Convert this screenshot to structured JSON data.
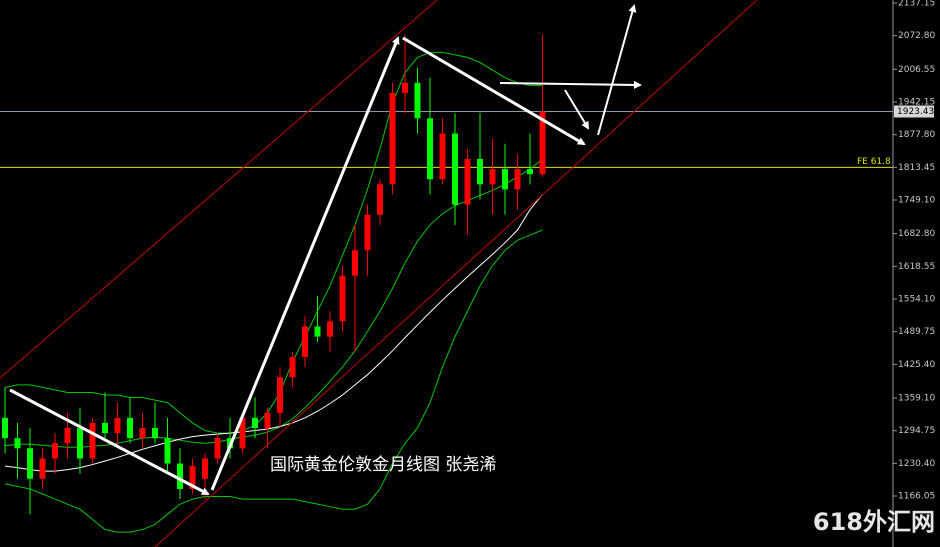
{
  "chart_data": {
    "type": "candlestick",
    "annotation": "国际黄金伦敦金月线图  张尧浠",
    "watermark": "618外汇网",
    "ylim": [
      1065.6,
      2143.06
    ],
    "yticks": [
      2137.15,
      {
        "value": 2072.8,
        "label": "2072.80"
      },
      2006.55,
      1942.15,
      {
        "value": 1877.8,
        "label": "1877.80"
      },
      1813.45,
      {
        "value": 1749.1,
        "label": "1749.10"
      },
      {
        "value": 1682.8,
        "label": "1682.80"
      },
      1618.55,
      {
        "value": 1554.1,
        "label": "1554.10"
      },
      1489.75,
      {
        "value": 1425.4,
        "label": "1425.40"
      },
      {
        "value": 1359.1,
        "label": "1359.10"
      },
      1294.75,
      {
        "value": 1230.4,
        "label": "1230.40"
      },
      1166.05
    ],
    "last_price": 1923.43,
    "fe_level": {
      "value": 1813.45,
      "label": "FE 61.8"
    },
    "up_color": "#ff0000",
    "down_color": "#00ff00",
    "open": [
      1320,
      1280,
      1260,
      1200,
      1240,
      1270,
      1300,
      1240,
      1310,
      1290,
      1320,
      1280,
      1300,
      1280,
      1230,
      1180,
      1200,
      1240,
      1280,
      1260,
      1320,
      1300,
      1330,
      1400,
      1440,
      1500,
      1480,
      1510,
      1600,
      1650,
      1720,
      1780,
      1960,
      1980,
      1910,
      1790,
      1880,
      1740,
      1830,
      1780,
      1810,
      1770,
      1810,
      1800
    ],
    "high": [
      1380,
      1310,
      1300,
      1260,
      1290,
      1330,
      1340,
      1320,
      1370,
      1350,
      1360,
      1330,
      1350,
      1320,
      1260,
      1240,
      1250,
      1290,
      1320,
      1330,
      1360,
      1340,
      1420,
      1450,
      1520,
      1560,
      1530,
      1620,
      1700,
      1740,
      1790,
      1980,
      2075,
      2010,
      1990,
      1910,
      1920,
      1850,
      1920,
      1870,
      1860,
      1840,
      1880,
      2075
    ],
    "low": [
      1250,
      1200,
      1130,
      1180,
      1210,
      1240,
      1210,
      1230,
      1280,
      1260,
      1270,
      1260,
      1270,
      1210,
      1160,
      1170,
      1160,
      1230,
      1240,
      1250,
      1280,
      1260,
      1300,
      1380,
      1420,
      1470,
      1450,
      1490,
      1450,
      1600,
      1700,
      1760,
      1920,
      1880,
      1760,
      1780,
      1700,
      1680,
      1750,
      1720,
      1720,
      1730,
      1780,
      1795
    ],
    "close": [
      1280,
      1260,
      1200,
      1240,
      1270,
      1300,
      1240,
      1310,
      1290,
      1320,
      1280,
      1300,
      1280,
      1230,
      1180,
      1225,
      1240,
      1280,
      1260,
      1320,
      1300,
      1330,
      1400,
      1440,
      1500,
      1480,
      1510,
      1600,
      1650,
      1720,
      1780,
      1960,
      1980,
      1910,
      1790,
      1880,
      1740,
      1830,
      1780,
      1810,
      1770,
      1810,
      1800,
      1923.43
    ],
    "lines": [
      {
        "color": "#00c800",
        "values": [
          1380,
          1385,
          1385,
          1380,
          1375,
          1370,
          1370,
          1370,
          1365,
          1365,
          1360,
          1360,
          1355,
          1350,
          1330,
          1310,
          1295,
          1290,
          1290,
          1295,
          1305,
          1330,
          1370,
          1430,
          1480,
          1530,
          1580,
          1640,
          1700,
          1770,
          1850,
          1940,
          2000,
          2030,
          2040,
          2040,
          2035,
          2030,
          2020,
          2005,
          1990,
          1980,
          1975,
          1975
        ]
      },
      {
        "color": "#00c800",
        "values": [
          1265,
          1268,
          1268,
          1266,
          1264,
          1262,
          1262,
          1264,
          1266,
          1270,
          1275,
          1280,
          1282,
          1280,
          1276,
          1272,
          1270,
          1272,
          1278,
          1282,
          1286,
          1292,
          1302,
          1318,
          1340,
          1365,
          1392,
          1420,
          1452,
          1490,
          1530,
          1575,
          1625,
          1668,
          1700,
          1722,
          1738,
          1748,
          1758,
          1768,
          1780,
          1795,
          1810,
          1830
        ]
      },
      {
        "color": "#00c800",
        "values": [
          1190,
          1185,
          1180,
          1170,
          1160,
          1150,
          1140,
          1120,
          1100,
          1095,
          1095,
          1100,
          1110,
          1130,
          1150,
          1160,
          1165,
          1165,
          1165,
          1160,
          1160,
          1160,
          1160,
          1160,
          1155,
          1150,
          1145,
          1140,
          1140,
          1150,
          1180,
          1230,
          1270,
          1300,
          1350,
          1420,
          1480,
          1530,
          1580,
          1620,
          1650,
          1670,
          1680,
          1690
        ]
      },
      {
        "color": "#ffffff",
        "values": [
          1225,
          1222,
          1218,
          1215,
          1215,
          1218,
          1222,
          1228,
          1235,
          1242,
          1250,
          1258,
          1265,
          1272,
          1278,
          1283,
          1286,
          1288,
          1290,
          1292,
          1295,
          1298,
          1303,
          1310,
          1320,
          1333,
          1348,
          1365,
          1385,
          1405,
          1428,
          1452,
          1478,
          1503,
          1528,
          1552,
          1575,
          1598,
          1620,
          1642,
          1665,
          1690,
          1730,
          1760
        ]
      }
    ]
  }
}
